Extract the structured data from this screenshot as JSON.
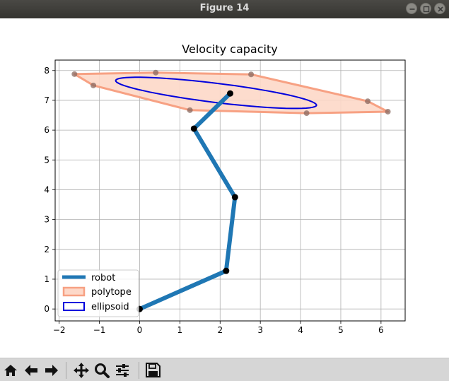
{
  "window": {
    "title": "Figure 14"
  },
  "window_controls": [
    "minimize-icon",
    "maximize-icon",
    "close-icon"
  ],
  "toolbar": {
    "buttons": [
      "home-icon",
      "back-icon",
      "forward-icon",
      "pan-icon",
      "zoom-icon",
      "configure-subplots-icon",
      "save-icon"
    ]
  },
  "colors": {
    "robot": "#1f77b4",
    "polytope_edge": "#f7a183",
    "polytope_fill": "#fdd8c8",
    "ellipsoid": "#0000dd",
    "vertex": "#8a6a60",
    "joint": "#000000"
  },
  "chart_data": {
    "type": "line",
    "title": "Velocity capacity",
    "xlabel": "",
    "ylabel": "",
    "xlim": [
      -2.1,
      6.6
    ],
    "ylim": [
      -0.4,
      8.35
    ],
    "xticks": [
      -2,
      -1,
      0,
      1,
      2,
      3,
      4,
      5,
      6
    ],
    "yticks": [
      0,
      1,
      2,
      3,
      4,
      5,
      6,
      7,
      8
    ],
    "grid": true,
    "legend_position": "lower-left",
    "series": [
      {
        "name": "robot",
        "kind": "line",
        "x": [
          0,
          2.15,
          2.37,
          1.35,
          2.25
        ],
        "y": [
          0,
          1.28,
          3.75,
          6.05,
          7.23
        ]
      },
      {
        "name": "polytope",
        "kind": "polygon",
        "x": [
          -1.62,
          0.4,
          2.77,
          5.67,
          6.17,
          4.15,
          1.25,
          -1.15
        ],
        "y": [
          7.88,
          7.93,
          7.87,
          6.97,
          6.62,
          6.57,
          6.67,
          7.5
        ]
      },
      {
        "name": "ellipsoid",
        "kind": "ellipse",
        "center": [
          1.9,
          7.25
        ],
        "semi_axes": [
          2.53,
          0.32
        ],
        "angle_deg": -9.5
      }
    ]
  }
}
